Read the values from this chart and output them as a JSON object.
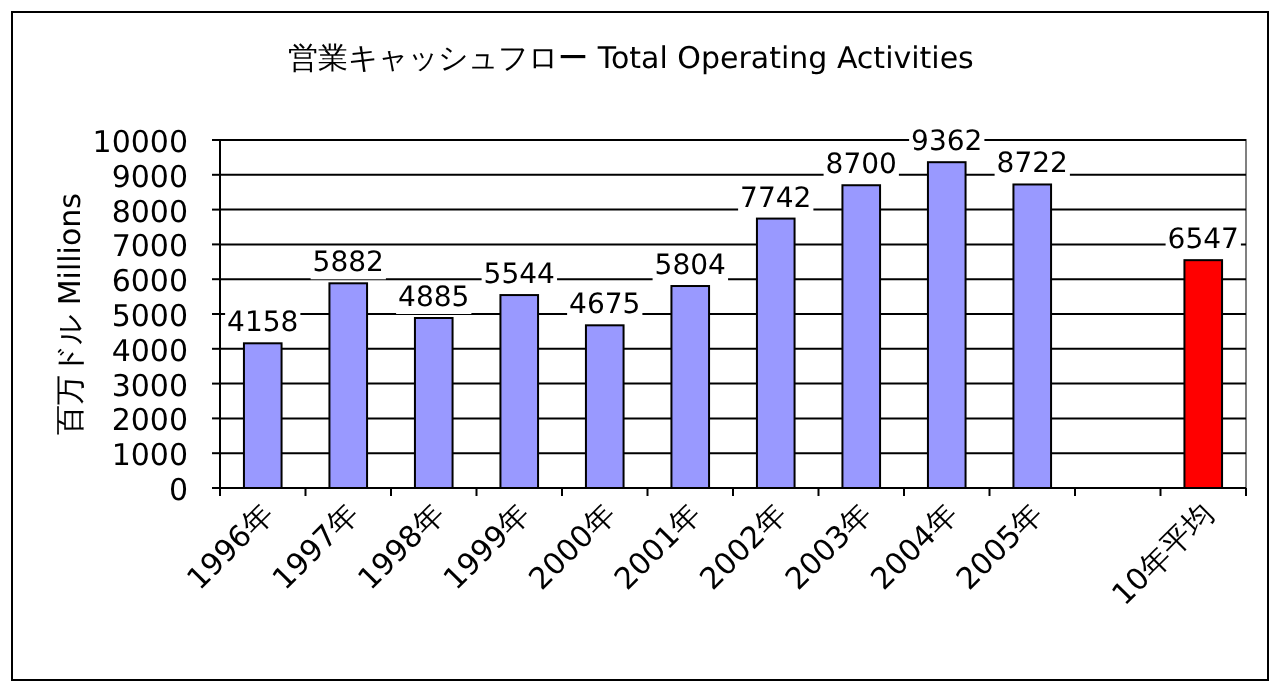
{
  "chart_data": {
    "type": "bar",
    "title": "営業キャッシュフロー  Total Operating Activities",
    "ylabel": "百万ドル  Millions",
    "categories": [
      "1996年",
      "1997年",
      "1998年",
      "1999年",
      "2000年",
      "2001年",
      "2002年",
      "2003年",
      "2004年",
      "2005年",
      null,
      "10年平均"
    ],
    "values": [
      4158,
      5882,
      4885,
      5544,
      4675,
      5804,
      7742,
      8700,
      9362,
      8722,
      null,
      6547
    ],
    "colors": [
      "#9999ff",
      "#9999ff",
      "#9999ff",
      "#9999ff",
      "#9999ff",
      "#9999ff",
      "#9999ff",
      "#9999ff",
      "#9999ff",
      "#9999ff",
      null,
      "#ff0000"
    ],
    "ylim": [
      0,
      10000
    ],
    "yticks": [
      0,
      1000,
      2000,
      3000,
      4000,
      5000,
      6000,
      7000,
      8000,
      9000,
      10000
    ],
    "grid": "y",
    "data_labels": true
  }
}
